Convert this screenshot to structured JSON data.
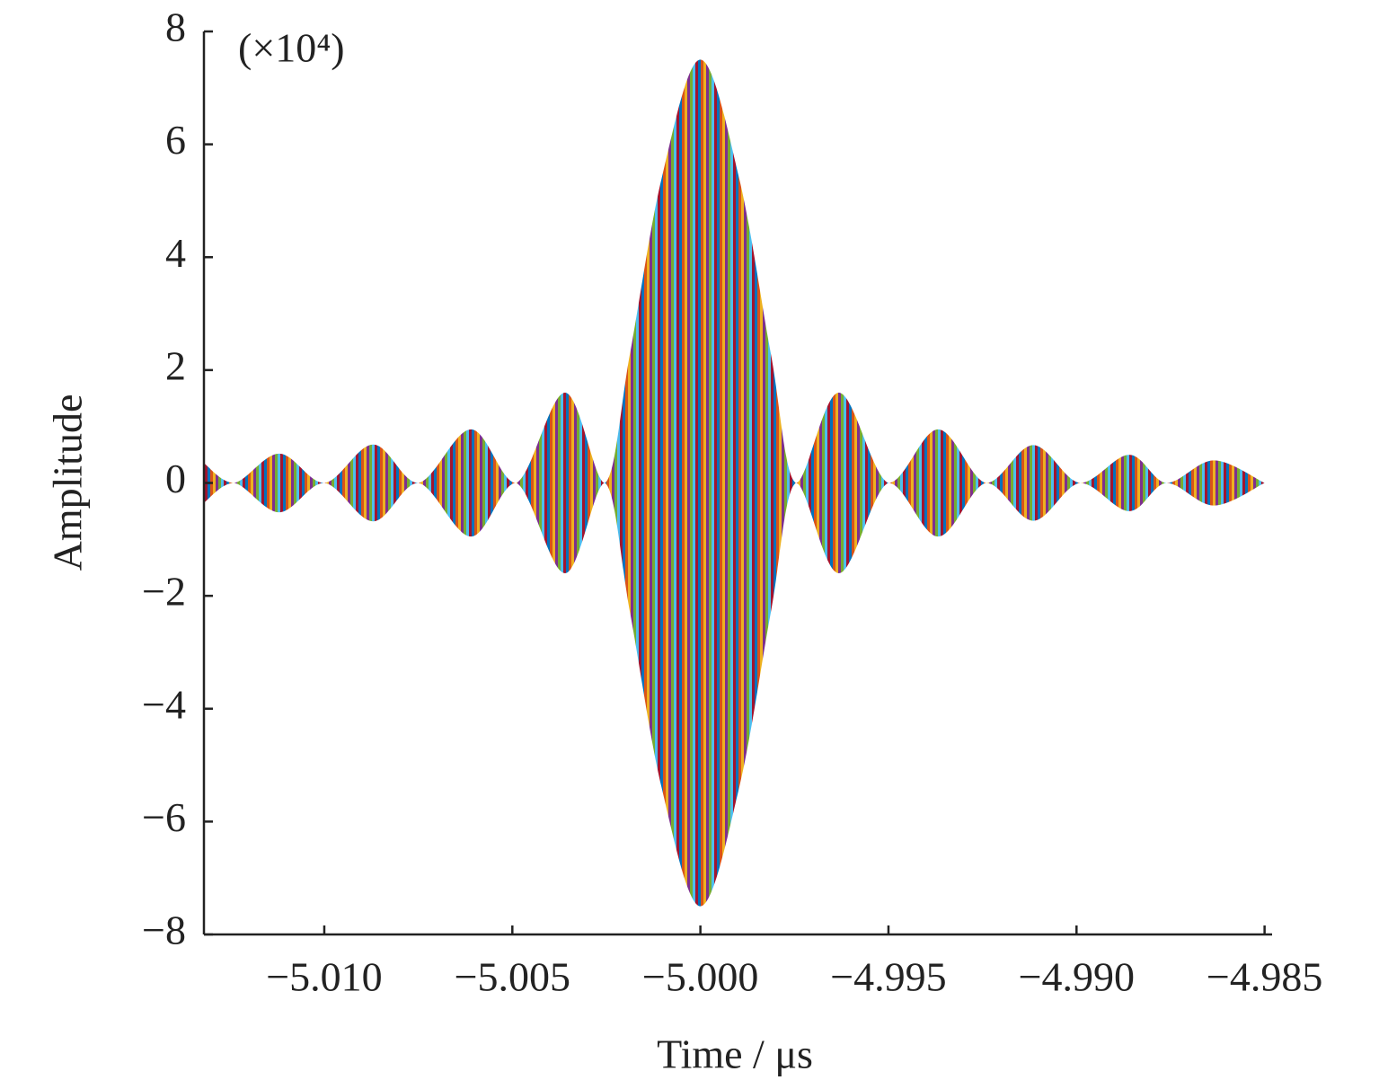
{
  "chart_data": {
    "type": "envelope",
    "annotation": "(×10⁴)",
    "xlabel": "Time / μs",
    "ylabel": "Amplitude",
    "x": [
      -5.0132,
      -5.0124,
      -5.0112,
      -5.01,
      -5.0087,
      -5.0075,
      -5.0061,
      -5.0049,
      -5.0036,
      -5.00254,
      -5.00187,
      -5.00103,
      -5.0,
      -4.99897,
      -4.99813,
      -4.99746,
      -4.99632,
      -4.995,
      -4.99368,
      -4.9924,
      -4.99115,
      -4.9899,
      -4.9886,
      -4.9876,
      -4.98635,
      -4.985
    ],
    "series": [
      {
        "values": [
          0.35,
          0,
          0.52,
          0,
          0.68,
          0,
          0.95,
          0,
          1.6,
          0,
          2.3,
          5.4,
          7.5,
          5.4,
          2.3,
          0,
          1.6,
          0,
          0.95,
          0,
          0.67,
          0,
          0.5,
          0,
          0.4,
          0
        ]
      },
      {
        "values": [
          -0.35,
          0,
          -0.52,
          0,
          -0.68,
          0,
          -0.95,
          0,
          -1.6,
          0,
          -2.3,
          -5.4,
          -7.5,
          -5.4,
          -2.3,
          0,
          -1.6,
          0,
          -0.95,
          0,
          -0.67,
          0,
          -0.5,
          0,
          -0.4,
          0
        ]
      }
    ],
    "colors": [
      "#0072bd",
      "#d95319",
      "#edb120",
      "#7e2f8e",
      "#77ac30",
      "#4dbeee",
      "#a2142f"
    ],
    "xlim": [
      -5.0132,
      -4.9848
    ],
    "ylim": [
      -8,
      8
    ],
    "xticks": [
      {
        "value": -5.01,
        "label": "−5.010"
      },
      {
        "value": -5.005,
        "label": "−5.005"
      },
      {
        "value": -5.0,
        "label": "−5.000"
      },
      {
        "value": -4.995,
        "label": "−4.995"
      },
      {
        "value": -4.99,
        "label": "−4.990"
      },
      {
        "value": -4.985,
        "label": "−4.985"
      }
    ],
    "yticks": [
      {
        "value": -8,
        "label": "−8"
      },
      {
        "value": -6,
        "label": "−6"
      },
      {
        "value": -4,
        "label": "−4"
      },
      {
        "value": -2,
        "label": "−2"
      },
      0,
      2,
      4,
      6,
      8
    ],
    "grid": false
  }
}
